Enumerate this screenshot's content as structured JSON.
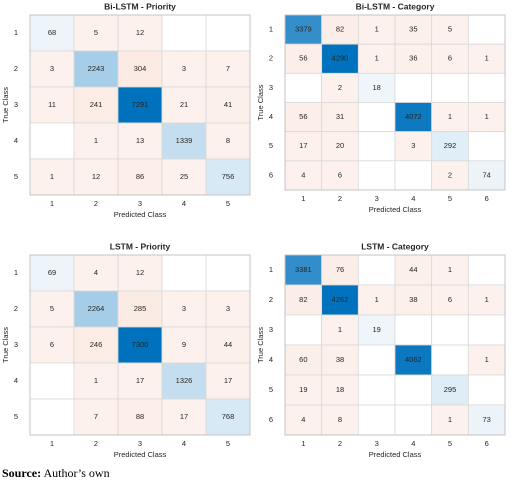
{
  "chart_data": [
    {
      "type": "heatmap",
      "title": "Bi-LSTM - Priority",
      "x_label": "Predicted Class",
      "y_label": "True Class",
      "x_categories": [
        "1",
        "2",
        "3",
        "4",
        "5"
      ],
      "y_categories": [
        "1",
        "2",
        "3",
        "4",
        "5"
      ],
      "diagonal_color": "#0072bd",
      "off_diagonal_color": "#d95319",
      "values": [
        [
          68,
          5,
          12,
          null,
          null
        ],
        [
          3,
          2243,
          304,
          3,
          7
        ],
        [
          11,
          241,
          7291,
          21,
          41
        ],
        [
          null,
          1,
          13,
          1339,
          8
        ],
        [
          1,
          12,
          86,
          25,
          756
        ]
      ]
    },
    {
      "type": "heatmap",
      "title": "Bi-LSTM - Category",
      "x_label": "Predicted Class",
      "y_label": "True Class",
      "x_categories": [
        "1",
        "2",
        "3",
        "4",
        "5",
        "6"
      ],
      "y_categories": [
        "1",
        "2",
        "3",
        "4",
        "5",
        "6"
      ],
      "diagonal_color": "#0072bd",
      "off_diagonal_color": "#d95319",
      "values": [
        [
          3379,
          82,
          1,
          35,
          5,
          null
        ],
        [
          56,
          4290,
          1,
          36,
          6,
          1
        ],
        [
          null,
          2,
          18,
          null,
          null,
          null
        ],
        [
          56,
          31,
          null,
          4072,
          1,
          1
        ],
        [
          17,
          20,
          null,
          3,
          292,
          null
        ],
        [
          4,
          6,
          null,
          null,
          2,
          74
        ]
      ]
    },
    {
      "type": "heatmap",
      "title": "LSTM - Priority",
      "x_label": "Predicted Class",
      "y_label": "True Class",
      "x_categories": [
        "1",
        "2",
        "3",
        "4",
        "5"
      ],
      "y_categories": [
        "1",
        "2",
        "3",
        "4",
        "5"
      ],
      "diagonal_color": "#0072bd",
      "off_diagonal_color": "#d95319",
      "values": [
        [
          69,
          4,
          12,
          null,
          null
        ],
        [
          5,
          2264,
          285,
          3,
          3
        ],
        [
          6,
          246,
          7300,
          9,
          44
        ],
        [
          null,
          1,
          17,
          1326,
          17
        ],
        [
          null,
          7,
          88,
          17,
          768
        ]
      ]
    },
    {
      "type": "heatmap",
      "title": "LSTM - Category",
      "x_label": "Predicted Class",
      "y_label": "True Class",
      "x_categories": [
        "1",
        "2",
        "3",
        "4",
        "5",
        "6"
      ],
      "y_categories": [
        "1",
        "2",
        "3",
        "4",
        "5",
        "6"
      ],
      "diagonal_color": "#0072bd",
      "off_diagonal_color": "#d95319",
      "values": [
        [
          3381,
          76,
          null,
          44,
          1,
          null
        ],
        [
          82,
          4262,
          1,
          38,
          6,
          1
        ],
        [
          null,
          1,
          19,
          null,
          null,
          null
        ],
        [
          60,
          38,
          null,
          4062,
          null,
          1
        ],
        [
          19,
          18,
          null,
          null,
          295,
          null
        ],
        [
          4,
          8,
          null,
          null,
          1,
          73
        ]
      ]
    }
  ],
  "caption": {
    "label": "Source:",
    "text": "Author’s own"
  }
}
